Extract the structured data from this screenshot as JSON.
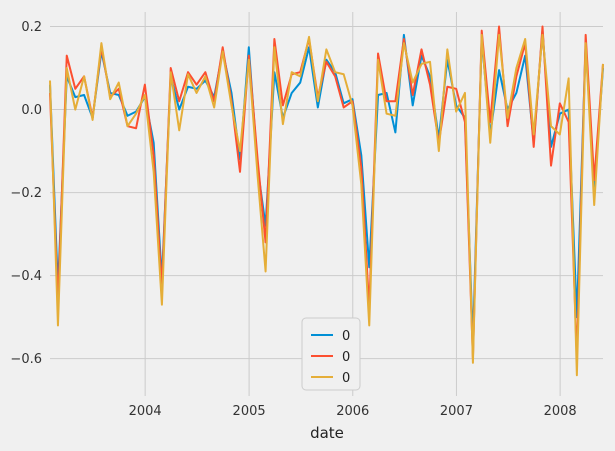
{
  "chart_data": {
    "type": "line",
    "xlabel": "date",
    "ylabel": "",
    "title": "",
    "xlim": [
      "2003-01-31",
      "2008-05-31"
    ],
    "ylim": [
      -0.69,
      0.235
    ],
    "grid": true,
    "legend_position": "bottom-center",
    "x_tick_labels": [
      "2004",
      "2005",
      "2006",
      "2007",
      "2008"
    ],
    "x_ticks": [
      "2004-01-01",
      "2005-01-01",
      "2006-01-01",
      "2007-01-01",
      "2008-01-01"
    ],
    "y_ticks": [
      0.2,
      0.0,
      -0.2,
      -0.4,
      -0.6
    ],
    "y_tick_labels": [
      "0.2",
      "0.0",
      "−0.2",
      "−0.4",
      "−0.6"
    ],
    "x": [
      "2003-01-31",
      "2003-02-28",
      "2003-03-31",
      "2003-04-30",
      "2003-05-31",
      "2003-06-30",
      "2003-07-31",
      "2003-08-31",
      "2003-09-30",
      "2003-10-31",
      "2003-11-30",
      "2003-12-31",
      "2004-01-31",
      "2004-02-29",
      "2004-03-31",
      "2004-04-30",
      "2004-05-31",
      "2004-06-30",
      "2004-07-31",
      "2004-08-31",
      "2004-09-30",
      "2004-10-31",
      "2004-11-30",
      "2004-12-31",
      "2005-01-31",
      "2005-02-28",
      "2005-03-31",
      "2005-04-30",
      "2005-05-31",
      "2005-06-30",
      "2005-07-31",
      "2005-08-31",
      "2005-09-30",
      "2005-10-31",
      "2005-11-30",
      "2005-12-31",
      "2006-01-31",
      "2006-02-28",
      "2006-03-31",
      "2006-04-30",
      "2006-05-31",
      "2006-06-30",
      "2006-07-31",
      "2006-08-31",
      "2006-09-30",
      "2006-10-31",
      "2006-11-30",
      "2006-12-31",
      "2007-01-31",
      "2007-02-28",
      "2007-03-31",
      "2007-04-30",
      "2007-05-31",
      "2007-06-30",
      "2007-07-31",
      "2007-08-31",
      "2007-09-30",
      "2007-10-31",
      "2007-11-30",
      "2007-12-31",
      "2008-01-31",
      "2008-02-29",
      "2008-03-31",
      "2008-04-30",
      "2008-05-31"
    ],
    "series": [
      {
        "name": "0",
        "color": "#008fd5",
        "values": [
          0.06,
          -0.43,
          0.08,
          0.03,
          0.035,
          -0.02,
          0.14,
          0.04,
          0.035,
          -0.015,
          -0.005,
          0.03,
          -0.08,
          -0.41,
          0.08,
          0.0,
          0.055,
          0.05,
          0.07,
          0.03,
          0.14,
          0.04,
          -0.12,
          0.15,
          -0.14,
          -0.28,
          0.09,
          -0.02,
          0.04,
          0.065,
          0.15,
          0.005,
          0.12,
          0.09,
          0.015,
          0.025,
          -0.11,
          -0.38,
          0.035,
          0.04,
          -0.055,
          0.18,
          0.01,
          0.13,
          0.08,
          -0.07,
          0.12,
          0.01,
          -0.02,
          -0.56,
          0.17,
          -0.06,
          0.095,
          0.0,
          0.04,
          0.13,
          -0.08,
          0.19,
          -0.09,
          -0.01,
          0.0,
          -0.5,
          0.16,
          -0.19,
          0.1
        ]
      },
      {
        "name": "0",
        "color": "#fc4f30",
        "values": [
          0.04,
          -0.47,
          0.13,
          0.05,
          0.08,
          -0.02,
          0.15,
          0.03,
          0.05,
          -0.04,
          -0.045,
          0.06,
          -0.11,
          -0.43,
          0.1,
          0.02,
          0.09,
          0.06,
          0.09,
          0.02,
          0.15,
          0.02,
          -0.15,
          0.13,
          -0.12,
          -0.32,
          0.17,
          0.01,
          0.085,
          0.09,
          0.17,
          0.03,
          0.115,
          0.08,
          0.005,
          0.02,
          -0.14,
          -0.48,
          0.135,
          0.02,
          0.02,
          0.17,
          0.035,
          0.145,
          0.06,
          -0.08,
          0.055,
          0.05,
          -0.03,
          -0.6,
          0.19,
          -0.03,
          0.2,
          -0.04,
          0.08,
          0.16,
          -0.09,
          0.2,
          -0.135,
          0.015,
          -0.03,
          -0.6,
          0.18,
          -0.17,
          0.11
        ]
      },
      {
        "name": "0",
        "color": "#e5ae38",
        "values": [
          0.07,
          -0.52,
          0.1,
          0.0,
          0.08,
          -0.025,
          0.16,
          0.025,
          0.065,
          -0.04,
          -0.01,
          0.035,
          -0.15,
          -0.47,
          0.09,
          -0.05,
          0.085,
          0.04,
          0.08,
          0.005,
          0.14,
          0.01,
          -0.1,
          0.12,
          -0.16,
          -0.39,
          0.15,
          -0.035,
          0.09,
          0.08,
          0.175,
          0.02,
          0.145,
          0.09,
          0.085,
          0.01,
          -0.18,
          -0.52,
          0.12,
          -0.01,
          -0.015,
          0.16,
          0.065,
          0.11,
          0.115,
          -0.1,
          0.145,
          -0.005,
          0.04,
          -0.61,
          0.18,
          -0.08,
          0.18,
          -0.02,
          0.1,
          0.17,
          -0.06,
          0.18,
          -0.04,
          -0.06,
          0.075,
          -0.64,
          0.16,
          -0.23,
          0.11
        ]
      }
    ]
  }
}
